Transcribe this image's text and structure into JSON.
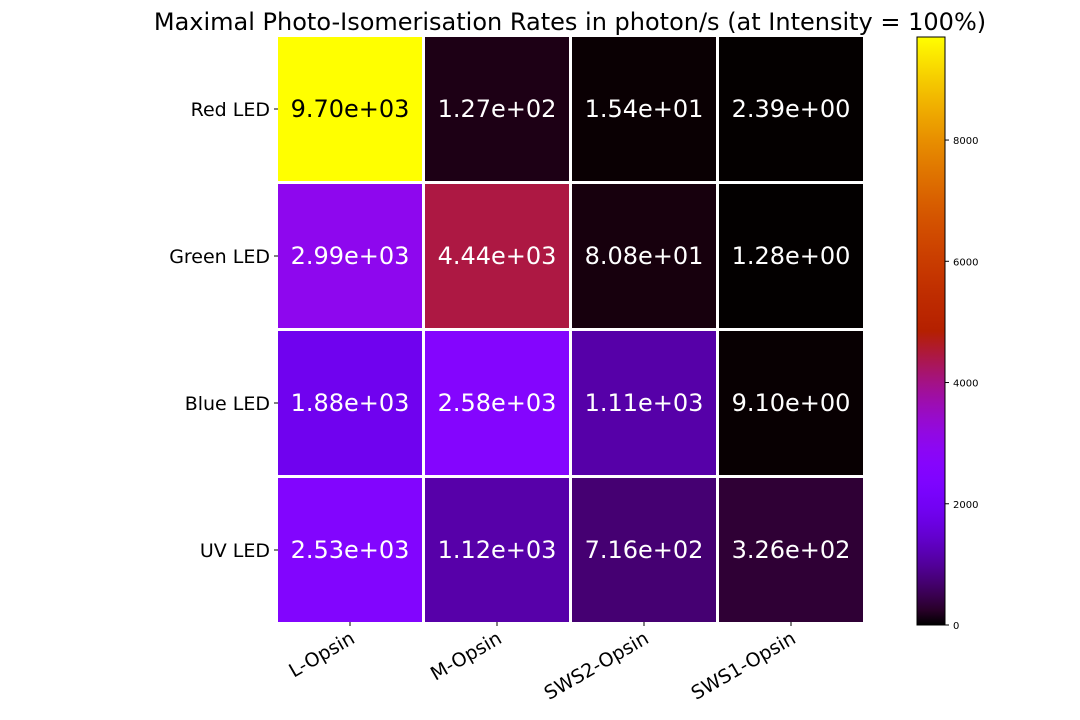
{
  "chart_data": {
    "type": "heatmap",
    "title": "Maximal Photo-Isomerisation Rates in photon/s (at Intensity = 100%)",
    "rows": [
      "Red LED",
      "Green LED",
      "Blue LED",
      "UV LED"
    ],
    "columns": [
      "L-Opsin",
      "M-Opsin",
      "SWS2-Opsin",
      "SWS1-Opsin"
    ],
    "values": [
      [
        9700,
        127,
        15.4,
        2.39
      ],
      [
        2990,
        4440,
        80.8,
        1.28
      ],
      [
        1880,
        2580,
        1110,
        9.1
      ],
      [
        2530,
        1120,
        716,
        326
      ]
    ],
    "cell_labels": [
      [
        "9.70e+03",
        "1.27e+02",
        "1.54e+01",
        "2.39e+00"
      ],
      [
        "2.99e+03",
        "4.44e+03",
        "8.08e+01",
        "1.28e+00"
      ],
      [
        "1.88e+03",
        "2.58e+03",
        "1.11e+03",
        "9.10e+00"
      ],
      [
        "2.53e+03",
        "1.12e+03",
        "7.16e+02",
        "3.26e+02"
      ]
    ],
    "colormap": "gnuplot",
    "colorbar": {
      "vmin": 0,
      "vmax": 9700,
      "ticks": [
        0,
        2000,
        4000,
        6000,
        8000
      ],
      "tick_labels": [
        "0",
        "2000",
        "4000",
        "6000",
        "8000"
      ]
    },
    "xlabel": "",
    "ylabel": ""
  }
}
